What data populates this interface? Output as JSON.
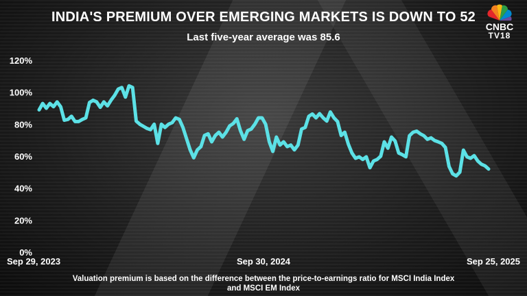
{
  "header": {
    "title": "INDIA'S PREMIUM OVER EMERGING MARKETS IS DOWN TO 52",
    "subtitle": "Last five-year average was 85.6"
  },
  "logo": {
    "text_line1": "CNBC",
    "text_line2": "TV18"
  },
  "footnote": {
    "line1": "Valuation premium is based on the difference between the price-to-earnings ratio for MSCI India Index",
    "line2": "and MSCI EM Index"
  },
  "chart_data": {
    "type": "line",
    "title": "INDIA'S PREMIUM OVER EMERGING MARKETS IS DOWN TO 52",
    "subtitle": "Last five-year average was 85.6",
    "xlabel": "",
    "ylabel": "",
    "x_range": [
      "Sep 29, 2023",
      "Sep 25, 2025"
    ],
    "x_tick_labels": [
      "Sep 29, 2023",
      "Sep 30, 2024",
      "Sep 25, 2025"
    ],
    "y_tick_labels": [
      "0%",
      "20%",
      "40%",
      "60%",
      "80%",
      "100%",
      "120%"
    ],
    "ylim": [
      0,
      120
    ],
    "grid": false,
    "line_color": "#5ce1e6",
    "series": [
      {
        "values": [
          89,
          93,
          90,
          93,
          91,
          94,
          91,
          82.5,
          83,
          85,
          81.7,
          81.7,
          83,
          84,
          93.6,
          95,
          94,
          90.6,
          94,
          91.5,
          95,
          98,
          102,
          103,
          97,
          104,
          103,
          82,
          80,
          78.7,
          77.4,
          76.6,
          80,
          68,
          80,
          78,
          80,
          81,
          84,
          83,
          78,
          71,
          64,
          59,
          64,
          66,
          73,
          74,
          69,
          73,
          75,
          72,
          75,
          79,
          80.5,
          83.4,
          76,
          70.6,
          76,
          77,
          80,
          84,
          84,
          80,
          69,
          63,
          72,
          67,
          69,
          66,
          67,
          64,
          67,
          77,
          78,
          85,
          86.4,
          84,
          86.6,
          84,
          82,
          87.7,
          84,
          81.7,
          73,
          75,
          67.6,
          62,
          58.7,
          59.6,
          58,
          59.6,
          52.8,
          57,
          58,
          60,
          69,
          65,
          72,
          69.5,
          62,
          61,
          59.6,
          72.8,
          75,
          75.7,
          74,
          72.8,
          70.6,
          71.5,
          69.8,
          69,
          68,
          65.5,
          53.6,
          49,
          47.7,
          50,
          63.8,
          59.6,
          58.7,
          60.4,
          57,
          55,
          54,
          52
        ]
      }
    ]
  }
}
